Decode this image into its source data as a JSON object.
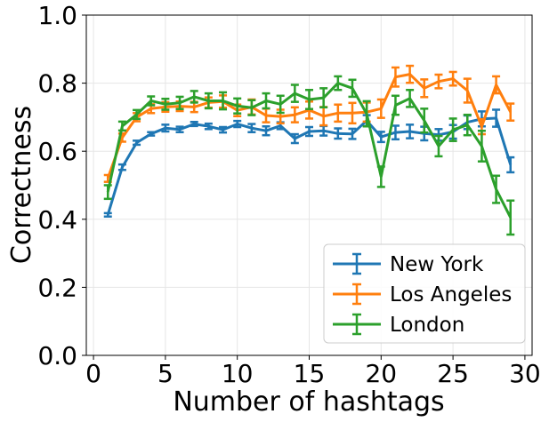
{
  "chart_data": {
    "type": "line",
    "title": "",
    "xlabel": "Number of hashtags",
    "ylabel": "Correctness",
    "xlim": [
      -0.5,
      30.5
    ],
    "ylim": [
      0.0,
      1.0
    ],
    "xticks": [
      0,
      5,
      10,
      15,
      20,
      25,
      30
    ],
    "yticks": [
      0.0,
      0.2,
      0.4,
      0.6,
      0.8,
      1.0
    ],
    "xtick_labels": [
      "0",
      "5",
      "10",
      "15",
      "20",
      "25",
      "30"
    ],
    "ytick_labels": [
      "0.0",
      "0.2",
      "0.4",
      "0.6",
      "0.8",
      "1.0"
    ],
    "grid": true,
    "legend_position": "lower-right",
    "x": [
      1,
      2,
      3,
      4,
      5,
      6,
      7,
      8,
      9,
      10,
      11,
      12,
      13,
      14,
      15,
      16,
      17,
      18,
      19,
      20,
      21,
      22,
      23,
      24,
      25,
      26,
      27,
      28,
      29
    ],
    "series": [
      {
        "name": "New York",
        "color": "#1f77b4",
        "values": [
          0.413,
          0.553,
          0.625,
          0.651,
          0.668,
          0.664,
          0.68,
          0.673,
          0.663,
          0.68,
          0.668,
          0.66,
          0.675,
          0.637,
          0.658,
          0.66,
          0.652,
          0.651,
          0.69,
          0.642,
          0.655,
          0.658,
          0.652,
          0.648,
          0.657,
          0.685,
          0.695,
          0.697,
          0.56
        ],
        "errors": [
          0.005,
          0.008,
          0.006,
          0.005,
          0.01,
          0.008,
          0.006,
          0.008,
          0.008,
          0.009,
          0.012,
          0.013,
          0.01,
          0.013,
          0.013,
          0.014,
          0.015,
          0.015,
          0.016,
          0.015,
          0.02,
          0.02,
          0.02,
          0.017,
          0.02,
          0.02,
          0.022,
          0.025,
          0.022
        ]
      },
      {
        "name": "Los Angeles",
        "color": "#ff7f0e",
        "values": [
          0.52,
          0.64,
          0.7,
          0.725,
          0.73,
          0.732,
          0.73,
          0.743,
          0.746,
          0.72,
          0.73,
          0.705,
          0.702,
          0.707,
          0.721,
          0.703,
          0.712,
          0.712,
          0.715,
          0.725,
          0.818,
          0.826,
          0.785,
          0.805,
          0.813,
          0.778,
          0.672,
          0.795,
          0.715
        ],
        "errors": [
          0.01,
          0.012,
          0.012,
          0.013,
          0.014,
          0.014,
          0.015,
          0.015,
          0.018,
          0.017,
          0.022,
          0.02,
          0.02,
          0.022,
          0.025,
          0.027,
          0.025,
          0.03,
          0.028,
          0.027,
          0.028,
          0.025,
          0.026,
          0.02,
          0.02,
          0.035,
          0.022,
          0.025,
          0.025
        ]
      },
      {
        "name": "London",
        "color": "#2ca02c",
        "values": [
          0.48,
          0.674,
          0.708,
          0.748,
          0.738,
          0.742,
          0.76,
          0.748,
          0.748,
          0.733,
          0.728,
          0.748,
          0.738,
          0.77,
          0.752,
          0.757,
          0.8,
          0.785,
          0.71,
          0.525,
          0.735,
          0.755,
          0.69,
          0.615,
          0.663,
          0.677,
          0.615,
          0.488,
          0.405
        ],
        "errors": [
          0.02,
          0.013,
          0.013,
          0.013,
          0.016,
          0.018,
          0.017,
          0.022,
          0.025,
          0.022,
          0.022,
          0.022,
          0.025,
          0.025,
          0.028,
          0.028,
          0.02,
          0.025,
          0.037,
          0.03,
          0.028,
          0.025,
          0.035,
          0.03,
          0.033,
          0.03,
          0.045,
          0.04,
          0.05
        ]
      }
    ]
  }
}
